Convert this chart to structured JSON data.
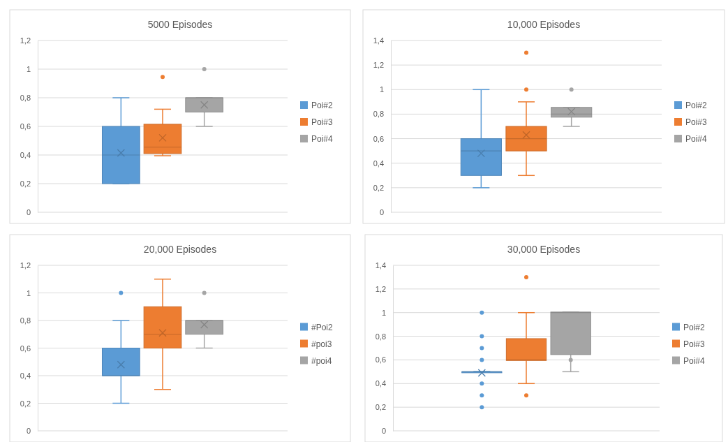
{
  "chart_data": [
    {
      "type": "box",
      "title": "5000 Episodes",
      "categories": [
        null
      ],
      "ylim": [
        0,
        1.2
      ],
      "yticks": [
        {
          "value": 0,
          "label": "0"
        },
        {
          "value": 0.2,
          "label": "0,2"
        },
        {
          "value": 0.4,
          "label": "0,4"
        },
        {
          "value": 0.6,
          "label": "0,6"
        },
        {
          "value": 0.8,
          "label": "0,8"
        },
        {
          "value": 1,
          "label": "1"
        },
        {
          "value": 1.2,
          "label": "1,2"
        }
      ],
      "grid": "y",
      "legend": "right",
      "series": [
        {
          "name": "Poi#2",
          "color": "#5b9bd5",
          "boxes": [
            {
              "low": 0.2,
              "q1": 0.2,
              "median": 0.4,
              "q3": 0.6,
              "high": 0.8,
              "mean": 0.415
            }
          ]
        },
        {
          "name": "Poi#3",
          "color": "#ed7d31",
          "boxes": [
            {
              "low": 0.395,
              "q1": 0.41,
              "median": 0.455,
              "q3": 0.615,
              "high": 0.72,
              "mean": 0.52,
              "outliers": [
                0.945
              ]
            }
          ]
        },
        {
          "name": "Poi#4",
          "color": "#a5a5a5",
          "boxes": [
            {
              "low": 0.6,
              "q1": 0.7,
              "median": 0.8,
              "q3": 0.8,
              "high": 0.8,
              "mean": 0.75,
              "outliers": [
                1
              ]
            }
          ]
        }
      ]
    },
    {
      "type": "box",
      "title": "10,000 Episodes",
      "categories": [
        null
      ],
      "ylim": [
        0,
        1.4
      ],
      "yticks": [
        {
          "value": 0,
          "label": "0"
        },
        {
          "value": 0.2,
          "label": "0,2"
        },
        {
          "value": 0.4,
          "label": "0,4"
        },
        {
          "value": 0.6,
          "label": "0,6"
        },
        {
          "value": 0.8,
          "label": "0,8"
        },
        {
          "value": 1,
          "label": "1"
        },
        {
          "value": 1.2,
          "label": "1,2"
        },
        {
          "value": 1.4,
          "label": "1,4"
        }
      ],
      "grid": "y",
      "legend": "right",
      "series": [
        {
          "name": "Poi#2",
          "color": "#5b9bd5",
          "boxes": [
            {
              "low": 0.2,
              "q1": 0.3,
              "median": 0.5,
              "q3": 0.6,
              "high": 1,
              "mean": 0.48
            }
          ]
        },
        {
          "name": "Poi#3",
          "color": "#ed7d31",
          "boxes": [
            {
              "low": 0.3,
              "q1": 0.5,
              "median": 0.6,
              "q3": 0.7,
              "high": 0.9,
              "mean": 0.63,
              "outliers": [
                1,
                1.3
              ]
            }
          ]
        },
        {
          "name": "Poi#4",
          "color": "#a5a5a5",
          "boxes": [
            {
              "low": 0.7,
              "q1": 0.775,
              "median": 0.8,
              "q3": 0.855,
              "high": 0.855,
              "mean": 0.82,
              "outliers": [
                1
              ]
            }
          ]
        }
      ]
    },
    {
      "type": "box",
      "title": "20,000 Episodes",
      "categories": [
        null
      ],
      "ylim": [
        0,
        1.2
      ],
      "yticks": [
        {
          "value": 0,
          "label": "0"
        },
        {
          "value": 0.2,
          "label": "0,2"
        },
        {
          "value": 0.4,
          "label": "0,4"
        },
        {
          "value": 0.6,
          "label": "0,6"
        },
        {
          "value": 0.8,
          "label": "0,8"
        },
        {
          "value": 1,
          "label": "1"
        },
        {
          "value": 1.2,
          "label": "1,2"
        }
      ],
      "grid": "y",
      "legend": "right",
      "series": [
        {
          "name": "#Poi2",
          "color": "#5b9bd5",
          "boxes": [
            {
              "low": 0.2,
              "q1": 0.4,
              "median": 0.4,
              "q3": 0.6,
              "high": 0.8,
              "mean": 0.48,
              "outliers": [
                1
              ]
            }
          ]
        },
        {
          "name": "#poi3",
          "color": "#ed7d31",
          "boxes": [
            {
              "low": 0.3,
              "q1": 0.6,
              "median": 0.7,
              "q3": 0.9,
              "high": 1.1,
              "mean": 0.71
            }
          ]
        },
        {
          "name": "#poi4",
          "color": "#a5a5a5",
          "boxes": [
            {
              "low": 0.6,
              "q1": 0.7,
              "median": 0.8,
              "q3": 0.8,
              "high": 0.8,
              "mean": 0.77,
              "outliers": [
                1
              ]
            }
          ]
        }
      ]
    },
    {
      "type": "box",
      "title": "30,000 Episodes",
      "categories": [
        null
      ],
      "ylim": [
        0,
        1.4
      ],
      "yticks": [
        {
          "value": 0,
          "label": "0"
        },
        {
          "value": 0.2,
          "label": "0,2"
        },
        {
          "value": 0.4,
          "label": "0,4"
        },
        {
          "value": 0.6,
          "label": "0,6"
        },
        {
          "value": 0.8,
          "label": "0,8"
        },
        {
          "value": 1,
          "label": "1"
        },
        {
          "value": 1.2,
          "label": "1,2"
        },
        {
          "value": 1.4,
          "label": "1,4"
        }
      ],
      "grid": "y",
      "legend": "right",
      "series": [
        {
          "name": "Poi#2",
          "color": "#5b9bd5",
          "boxes": [
            {
              "low": 0.5,
              "q1": 0.5,
              "median": 0.5,
              "q3": 0.5,
              "high": 0.5,
              "mean": 0.49,
              "outliers": [
                0.2,
                0.3,
                0.4,
                0.6,
                0.7,
                0.8,
                1
              ]
            }
          ]
        },
        {
          "name": "Poi#3",
          "color": "#ed7d31",
          "boxes": [
            {
              "low": 0.4,
              "q1": 0.595,
              "median": 0.6,
              "q3": 0.78,
              "high": 1,
              "outliers": [
                0.3,
                1.3
              ]
            }
          ]
        },
        {
          "name": "Poi#4",
          "color": "#a5a5a5",
          "boxes": [
            {
              "low": 0.5,
              "q1": 0.645,
              "median": 1,
              "q3": 1.005,
              "high": 1.005,
              "outliers": [
                0.6
              ]
            }
          ]
        }
      ]
    }
  ]
}
